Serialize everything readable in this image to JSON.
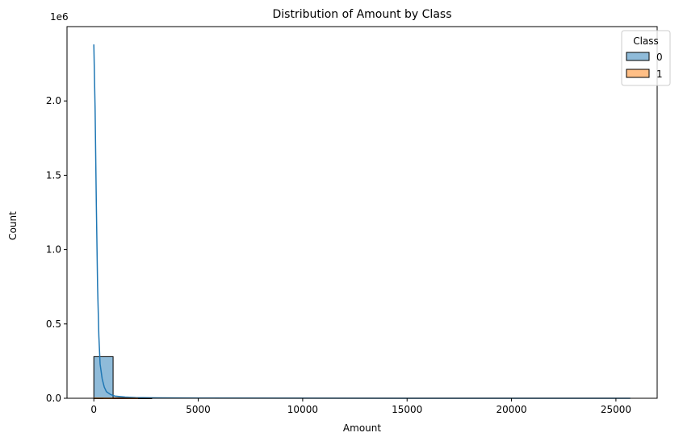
{
  "chart_data": {
    "type": "bar",
    "title": "Distribution of Amount by Class",
    "xlabel": "Amount",
    "ylabel": "Count",
    "y_offset_label": "1e6",
    "xlim": [
      -1284.6,
      26975.2
    ],
    "ylim": [
      0,
      2500000
    ],
    "x_ticks": [
      0,
      5000,
      10000,
      15000,
      20000,
      25000
    ],
    "y_ticks": [
      0,
      500000,
      1000000,
      1500000,
      2000000
    ],
    "y_tick_labels": [
      "0.0",
      "0.5",
      "1.0",
      "1.5",
      "2.0"
    ],
    "grid": false,
    "legend": {
      "title": "Class",
      "position": "top-right"
    },
    "series": [
      {
        "name": "0",
        "color": "#1f77b4",
        "histogram": {
          "bin_start": 0,
          "bin_width": 922,
          "counts": [
            280000,
            3600,
            700,
            0,
            0,
            0,
            0,
            0,
            0,
            0,
            0,
            0,
            0,
            0,
            0,
            0,
            0,
            0,
            0,
            0,
            0,
            0,
            0,
            0,
            0,
            0,
            0,
            0
          ]
        },
        "kde": {
          "x": [
            0,
            60,
            120,
            180,
            240,
            300,
            400,
            500,
            600,
            800,
            1000,
            1500,
            2000,
            3000,
            5000,
            10000,
            15000,
            20000,
            25690
          ],
          "y": [
            2380000,
            1950000,
            1300000,
            750000,
            420000,
            230000,
            130000,
            75000,
            45000,
            25000,
            15000,
            8000,
            5000,
            3000,
            1500,
            600,
            300,
            150,
            50
          ]
        }
      },
      {
        "name": "1",
        "color": "#ff7f0e",
        "histogram": {
          "bin_start": 0,
          "bin_width": 922,
          "counts": [
            480,
            10,
            2
          ]
        },
        "kde": {
          "x": [
            0,
            500,
            1000,
            2125
          ],
          "y": [
            1000,
            300,
            50,
            0
          ]
        }
      }
    ]
  }
}
